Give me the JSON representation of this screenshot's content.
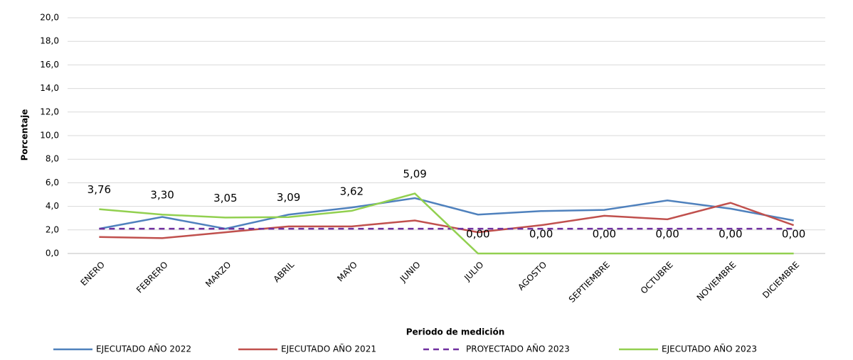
{
  "chart_data": {
    "type": "line",
    "y_label": "Porcentaje",
    "x_label": "Periodo de medición",
    "categories": [
      "ENERO",
      "FEBRERO",
      "MARZO",
      "ABRIL",
      "MAYO",
      "JUNIO",
      "JULIO",
      "AGOSTO",
      "SEPTIEMBRE",
      "OCTUBRE",
      "NOVIEMBRE",
      "DICIEMBRE"
    ],
    "ylim": [
      0,
      20
    ],
    "yticks": [
      {
        "value": 0,
        "label": "0,0"
      },
      {
        "value": 2,
        "label": "2,0"
      },
      {
        "value": 4,
        "label": "4,0"
      },
      {
        "value": 6,
        "label": "6,0"
      },
      {
        "value": 8,
        "label": "8,0"
      },
      {
        "value": 10,
        "label": "10,0"
      },
      {
        "value": 12,
        "label": "12,0"
      },
      {
        "value": 14,
        "label": "14,0"
      },
      {
        "value": 16,
        "label": "16,0"
      },
      {
        "value": 18,
        "label": "18,0"
      },
      {
        "value": 20,
        "label": "20,0"
      }
    ],
    "grid": true,
    "series": [
      {
        "name": "EJECUTADO AÑO 2022",
        "color": "#4f81bd",
        "values": [
          2.1,
          3.1,
          2.1,
          3.3,
          3.9,
          4.7,
          3.3,
          3.6,
          3.7,
          4.5,
          3.8,
          2.8
        ]
      },
      {
        "name": "EJECUTADO AÑO 2021",
        "color": "#c0504d",
        "values": [
          1.4,
          1.3,
          1.8,
          2.3,
          2.3,
          2.8,
          1.8,
          2.4,
          3.2,
          2.9,
          4.3,
          2.4
        ]
      },
      {
        "name": "PROYECTADO AÑO 2023",
        "color": "#7030a0",
        "dashed": true,
        "values": [
          2.1,
          2.1,
          2.1,
          2.1,
          2.1,
          2.1,
          2.1,
          2.1,
          2.1,
          2.1,
          2.1,
          2.1
        ]
      },
      {
        "name": "EJECUTADO AÑO 2023",
        "color": "#92d050",
        "values": [
          3.76,
          3.3,
          3.05,
          3.09,
          3.62,
          5.09,
          0,
          0,
          0,
          0,
          0,
          0
        ],
        "value_labels": [
          "3,76",
          "3,30",
          "3,05",
          "3,09",
          "3,62",
          "5,09",
          "0,00",
          "0,00",
          "0,00",
          "0,00",
          "0,00",
          "0,00"
        ]
      }
    ],
    "legend": "bottom"
  }
}
